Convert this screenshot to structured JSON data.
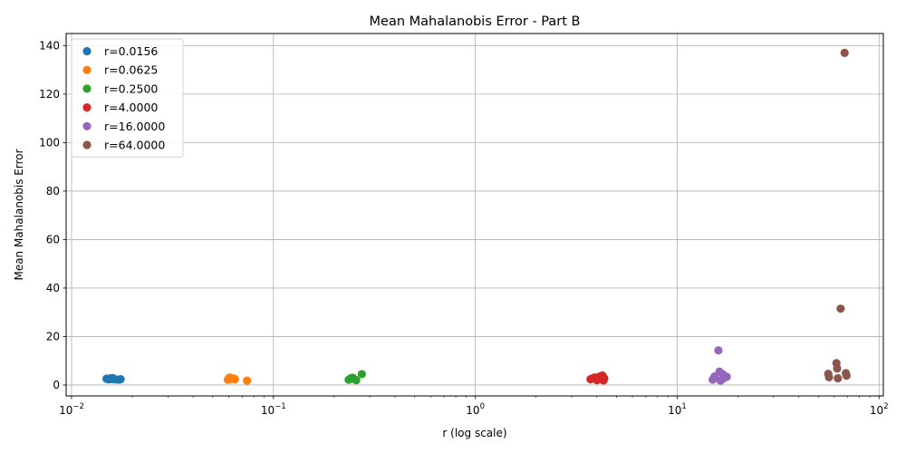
{
  "chart_data": {
    "type": "scatter",
    "title": "Mean Mahalanobis Error - Part B",
    "xlabel": "r (log scale)",
    "ylabel": "Mean Mahalanobis Error",
    "xscale": "log",
    "xlim": [
      0.0094,
      105
    ],
    "ylim": [
      -4.5,
      145
    ],
    "x_ticks": [
      0.01,
      0.1,
      1,
      10,
      100
    ],
    "x_tick_labels": [
      [
        "10",
        "−2"
      ],
      [
        "10",
        "−1"
      ],
      [
        "10",
        "0"
      ],
      [
        "10",
        "1"
      ],
      [
        "10",
        "2"
      ]
    ],
    "y_ticks": [
      0,
      20,
      40,
      60,
      80,
      100,
      120,
      140
    ],
    "y_tick_labels": [
      "0",
      "20",
      "40",
      "60",
      "80",
      "100",
      "120",
      "140"
    ],
    "grid": true,
    "legend_position": "top-left",
    "series": [
      {
        "name": "r=0.0156",
        "color": "#1f77b4",
        "points": [
          [
            0.0149,
            2.6
          ],
          [
            0.0153,
            2.3
          ],
          [
            0.0156,
            2.8
          ],
          [
            0.0158,
            2.5
          ],
          [
            0.016,
            2.9
          ],
          [
            0.0163,
            2.4
          ],
          [
            0.0166,
            2.3
          ],
          [
            0.0172,
            2.2
          ],
          [
            0.0175,
            2.4
          ]
        ]
      },
      {
        "name": "r=0.0625",
        "color": "#ff7f0e",
        "points": [
          [
            0.0595,
            2.2
          ],
          [
            0.0602,
            2.9
          ],
          [
            0.0608,
            3.1
          ],
          [
            0.0615,
            2.5
          ],
          [
            0.0625,
            2.6
          ],
          [
            0.0636,
            2.7
          ],
          [
            0.0645,
            2.4
          ],
          [
            0.074,
            1.8
          ]
        ]
      },
      {
        "name": "r=0.2500",
        "color": "#2ca02c",
        "points": [
          [
            0.236,
            2.2
          ],
          [
            0.242,
            2.8
          ],
          [
            0.247,
            3.0
          ],
          [
            0.252,
            2.4
          ],
          [
            0.257,
            2.0
          ],
          [
            0.274,
            4.5
          ]
        ]
      },
      {
        "name": "r=4.0000",
        "color": "#d62728",
        "points": [
          [
            3.72,
            2.4
          ],
          [
            3.82,
            2.8
          ],
          [
            3.9,
            3.1
          ],
          [
            4.0,
            2.0
          ],
          [
            4.05,
            2.6
          ],
          [
            4.12,
            3.5
          ],
          [
            4.2,
            2.3
          ],
          [
            4.26,
            3.9
          ],
          [
            4.32,
            1.9
          ],
          [
            4.35,
            2.8
          ]
        ]
      },
      {
        "name": "r=16.0000",
        "color": "#9467bd",
        "points": [
          [
            15.0,
            2.2
          ],
          [
            15.3,
            3.5
          ],
          [
            16.0,
            14.3
          ],
          [
            16.2,
            5.5
          ],
          [
            16.4,
            1.8
          ],
          [
            16.8,
            4.5
          ],
          [
            17.1,
            2.9
          ],
          [
            17.6,
            3.4
          ]
        ]
      },
      {
        "name": "r=64.0000",
        "color": "#8c564b",
        "points": [
          [
            56.0,
            4.6
          ],
          [
            56.5,
            3.2
          ],
          [
            61.5,
            9.0
          ],
          [
            62.0,
            6.8
          ],
          [
            62.5,
            2.8
          ],
          [
            64.5,
            31.5
          ],
          [
            67.5,
            137.0
          ],
          [
            68.5,
            4.9
          ],
          [
            69.0,
            3.9
          ]
        ]
      }
    ]
  }
}
